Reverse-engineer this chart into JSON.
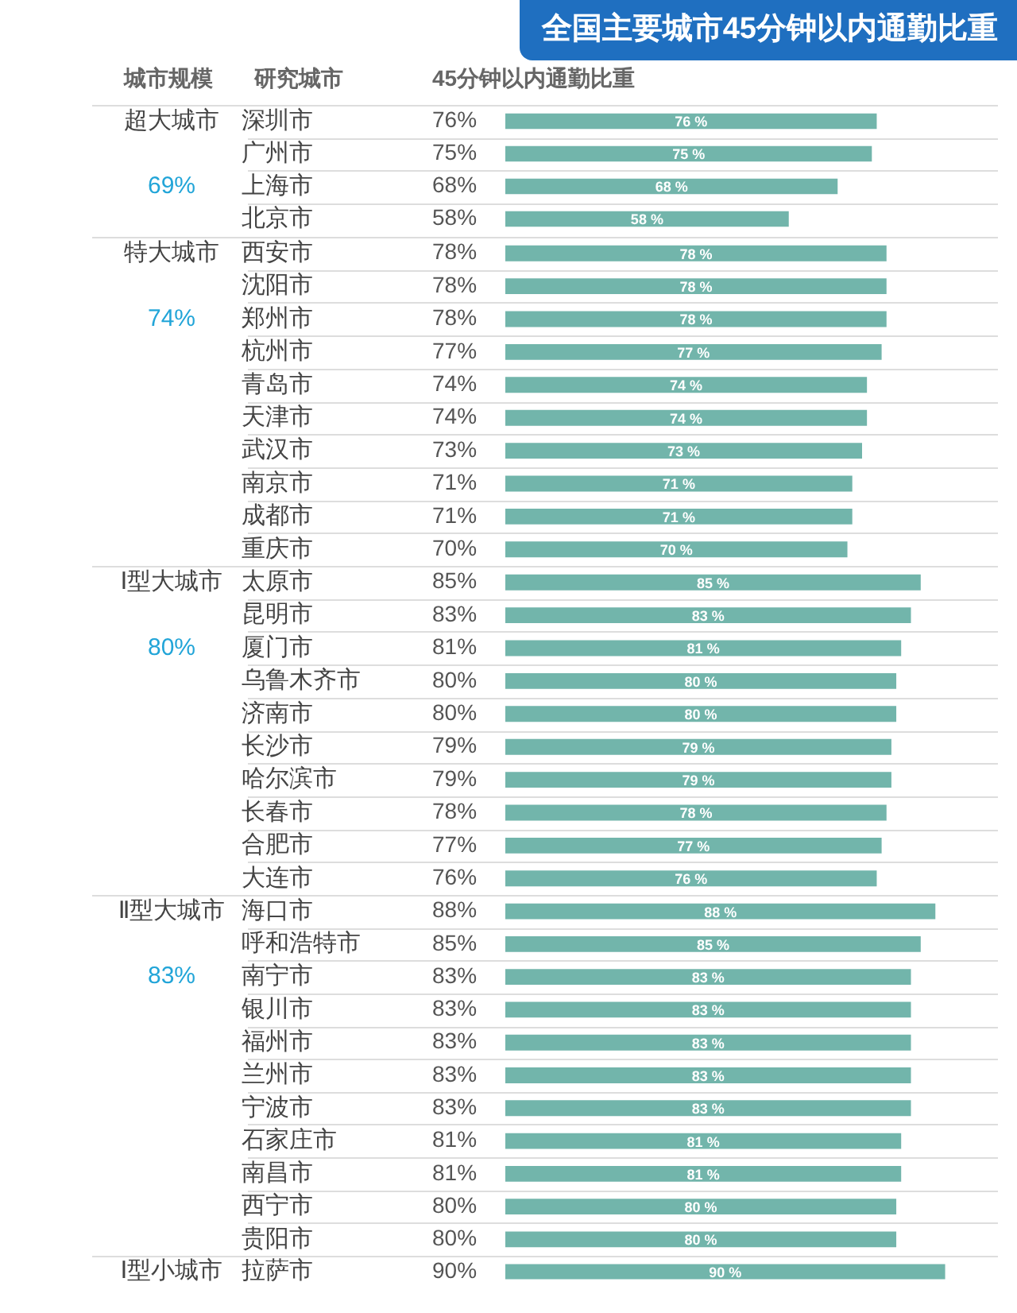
{
  "chart_data": [
    {
      "type": "bar",
      "orientation": "horizontal",
      "title": "全国主要城市45分钟以内通勤比重",
      "ylabel": "超大城市",
      "subtitle": "69%",
      "categories": [
        "深圳市",
        "广州市",
        "上海市",
        "北京市"
      ],
      "values": [
        76,
        75,
        68,
        58
      ],
      "value_labels": [
        "76 %",
        "75 %",
        "68 %",
        "58 %"
      ],
      "annotations": [
        "城市规模",
        "研究城市",
        "45分钟以内通勤比重",
        "76%",
        "75%",
        "68%",
        "58%"
      ],
      "color": "#72b5ab",
      "grid": "y"
    },
    {
      "type": "bar",
      "orientation": "horizontal",
      "ylabel": "特大城市",
      "subtitle": "74%",
      "categories": [
        "西安市",
        "沈阳市",
        "郑州市",
        "杭州市",
        "青岛市",
        "天津市",
        "武汉市",
        "南京市",
        "成都市",
        "重庆市"
      ],
      "values": [
        78,
        78,
        78,
        77,
        74,
        74,
        73,
        71,
        71,
        70
      ],
      "value_labels": [
        "78 %",
        "78 %",
        "78 %",
        "77 %",
        "74 %",
        "74 %",
        "73 %",
        "71 %",
        "71 %",
        "70 %"
      ],
      "annotations": [
        "78%",
        "78%",
        "78%",
        "77%",
        "74%",
        "74%",
        "73%",
        "71%",
        "71%",
        "70%"
      ],
      "color": "#72b5ab",
      "grid": "y"
    },
    {
      "type": "bar",
      "orientation": "horizontal",
      "ylabel": "Ⅰ型大城市",
      "subtitle": "80%",
      "categories": [
        "太原市",
        "昆明市",
        "厦门市",
        "乌鲁木齐市",
        "济南市",
        "长沙市",
        "哈尔滨市",
        "长春市",
        "合肥市",
        "大连市"
      ],
      "values": [
        85,
        83,
        81,
        80,
        80,
        79,
        79,
        78,
        77,
        76
      ],
      "value_labels": [
        "85 %",
        "83 %",
        "81 %",
        "80 %",
        "80 %",
        "79 %",
        "79 %",
        "78 %",
        "77 %",
        "76 %"
      ],
      "annotations": [
        "85%",
        "83%",
        "81%",
        "80%",
        "80%",
        "79%",
        "79%",
        "78%",
        "77%",
        "76%"
      ],
      "color": "#72b5ab",
      "grid": "y"
    },
    {
      "type": "bar",
      "orientation": "horizontal",
      "ylabel": "Ⅱ型大城市",
      "subtitle": "83%",
      "categories": [
        "海口市",
        "呼和浩特市",
        "南宁市",
        "银川市",
        "福州市",
        "兰州市",
        "宁波市",
        "石家庄市",
        "南昌市",
        "西宁市",
        "贵阳市"
      ],
      "values": [
        88,
        85,
        83,
        83,
        83,
        83,
        83,
        81,
        81,
        80,
        80
      ],
      "value_labels": [
        "88 %",
        "85 %",
        "83 %",
        "83 %",
        "83 %",
        "83 %",
        "83 %",
        "81 %",
        "81 %",
        "80 %",
        "80 %"
      ],
      "annotations": [
        "88%",
        "85%",
        "83%",
        "83%",
        "83%",
        "83%",
        "83%",
        "81%",
        "81%",
        "80%",
        "80%"
      ],
      "color": "#72b5ab",
      "grid": "y"
    },
    {
      "type": "bar",
      "orientation": "horizontal",
      "ylabel": "Ⅰ型小城市",
      "categories": [
        "拉萨市"
      ],
      "values": [
        90
      ],
      "value_labels": [
        "90 %"
      ],
      "annotations": [
        "90%"
      ],
      "color": "#72b5ab"
    }
  ]
}
